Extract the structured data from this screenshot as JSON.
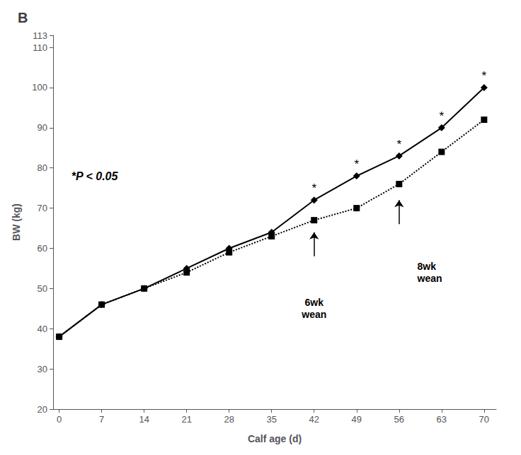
{
  "chart_data": {
    "type": "line",
    "title": "B",
    "x_label": "Calf age (d)",
    "y_label": "BW (kg)",
    "x": [
      0,
      7,
      14,
      21,
      28,
      35,
      42,
      49,
      56,
      63,
      70
    ],
    "series": [
      {
        "color": "#000000",
        "line_style": "solid",
        "marker": "diamond",
        "values": [
          38,
          46,
          50,
          55,
          60,
          64,
          72,
          78,
          83,
          90,
          100
        ]
      },
      {
        "color": "#000000",
        "line_style": "dotted",
        "marker": "square",
        "values": [
          38,
          46,
          50,
          54,
          59,
          63,
          67,
          70,
          76,
          84,
          92
        ]
      }
    ],
    "xlim": [
      -1,
      72
    ],
    "ylim": [
      20,
      113
    ],
    "xticks": [
      0,
      7,
      14,
      21,
      28,
      35,
      42,
      49,
      56,
      63,
      70
    ],
    "yticks": [
      20,
      30,
      40,
      50,
      60,
      70,
      80,
      90,
      100,
      110
    ],
    "grid": false,
    "annotations": [
      {
        "text": "*",
        "x": 42,
        "y": 72
      },
      {
        "text": "*",
        "x": 49,
        "y": 78
      },
      {
        "text": "*",
        "x": 56,
        "y": 83
      },
      {
        "text": "*",
        "x": 63,
        "y": 90
      },
      {
        "text": "*",
        "x": 70,
        "y": 100
      },
      {
        "text": "6wk\nwean",
        "x": 42,
        "y": 48,
        "arrow": {
          "x": 42,
          "from": 58,
          "to": 64
        }
      },
      {
        "text": "8wk\nwean",
        "x": 59,
        "y": 57,
        "arrow": {
          "x": 56,
          "from": 66,
          "to": 72
        }
      },
      {
        "text": "*P < 0.05",
        "x": 2,
        "y": 78
      }
    ]
  }
}
